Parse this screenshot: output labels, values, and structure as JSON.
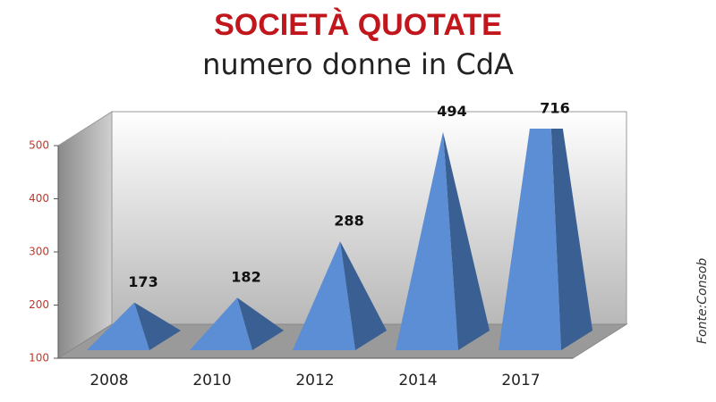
{
  "chart_data": {
    "type": "pyramid",
    "title": "SOCIETÀ QUOTATE",
    "subtitle": "numero donne in CdA",
    "source": "Fonte:Consob",
    "categories": [
      "2008",
      "2010",
      "2012",
      "2014",
      "2017"
    ],
    "values": [
      173,
      182,
      288,
      494,
      716
    ],
    "color": "#5b8ed4",
    "ylim": [
      100,
      500
    ],
    "yticks": [
      100,
      200,
      300,
      400,
      500
    ]
  }
}
